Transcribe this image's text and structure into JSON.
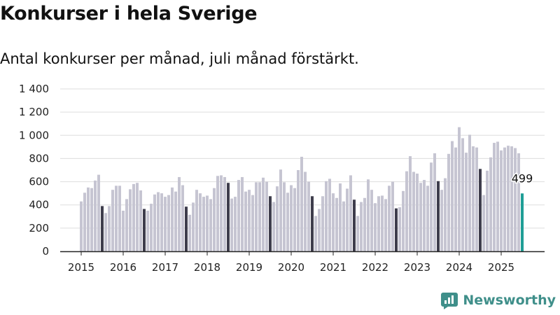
{
  "header": {
    "title": "Konkurser i hela Sverige",
    "subtitle": "Antal konkurser per månad, juli månad förstärkt."
  },
  "branding": {
    "name": "Newsworthy"
  },
  "colors": {
    "bar": "#c6c5d2",
    "highlight": "#3e3d4c",
    "latest": "#1f9e96",
    "brand": "#3f8f8a"
  },
  "chart_data": {
    "type": "bar",
    "title": "Konkurser i hela Sverige",
    "subtitle": "Antal konkurser per månad, juli månad förstärkt.",
    "start": "2015-01",
    "highlight_month": "juli",
    "ylim": [
      0,
      1400
    ],
    "yticks": [
      {
        "value": 0,
        "label": "0"
      },
      {
        "value": 200,
        "label": "200"
      },
      {
        "value": 400,
        "label": "400"
      },
      {
        "value": 600,
        "label": "600"
      },
      {
        "value": 800,
        "label": "800"
      },
      {
        "value": 1000,
        "label": "1 000"
      },
      {
        "value": 1200,
        "label": "1 200"
      },
      {
        "value": 1400,
        "label": "1 400"
      }
    ],
    "xticks": [
      "2015",
      "2016",
      "2017",
      "2018",
      "2019",
      "2020",
      "2021",
      "2022",
      "2023",
      "2024",
      "2025"
    ],
    "grid": true,
    "legend": "none",
    "values": [
      430,
      505,
      550,
      545,
      610,
      660,
      390,
      330,
      390,
      530,
      565,
      565,
      350,
      450,
      535,
      580,
      590,
      525,
      365,
      350,
      410,
      490,
      510,
      500,
      470,
      485,
      550,
      515,
      640,
      570,
      385,
      315,
      420,
      530,
      500,
      470,
      480,
      450,
      545,
      650,
      655,
      640,
      590,
      455,
      470,
      615,
      640,
      515,
      530,
      485,
      595,
      595,
      635,
      600,
      475,
      425,
      560,
      705,
      595,
      505,
      570,
      545,
      700,
      815,
      685,
      600,
      475,
      305,
      365,
      475,
      605,
      625,
      500,
      460,
      585,
      430,
      540,
      655,
      445,
      305,
      425,
      460,
      620,
      530,
      415,
      475,
      480,
      450,
      565,
      600,
      370,
      380,
      520,
      690,
      820,
      685,
      670,
      590,
      615,
      565,
      765,
      845,
      605,
      530,
      630,
      840,
      950,
      895,
      1070,
      975,
      850,
      1005,
      905,
      895,
      710,
      485,
      695,
      810,
      935,
      945,
      870,
      895,
      910,
      905,
      890,
      845,
      499
    ],
    "annotations": [
      {
        "index": 126,
        "label": "499"
      }
    ]
  }
}
